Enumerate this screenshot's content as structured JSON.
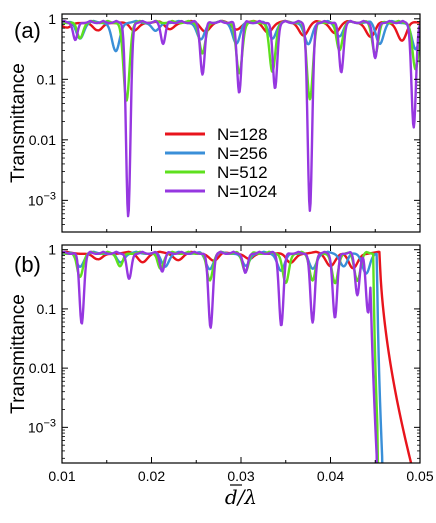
{
  "chart_data": [
    {
      "panel": "(a)",
      "type": "line",
      "ylabel": "Transmittance",
      "yscale": "log",
      "xlim": [
        0.01,
        0.05
      ],
      "ylim": [
        0.0003,
        1.2
      ],
      "yticks": [
        "1",
        "0.1",
        "0.01",
        "10^-3"
      ],
      "legend": {
        "position": "center",
        "entries": [
          "N=128",
          "N=256",
          "N=512",
          "N=1024"
        ]
      },
      "series": [
        {
          "name": "N=128",
          "color": "#e8141c",
          "dips": [
            [
              0.0105,
              0.78
            ],
            [
              0.014,
              0.7
            ],
            [
              0.018,
              0.72
            ],
            [
              0.022,
              0.78
            ],
            [
              0.026,
              0.72
            ],
            [
              0.0295,
              0.78
            ],
            [
              0.033,
              0.7
            ],
            [
              0.037,
              0.62
            ],
            [
              0.0405,
              0.68
            ],
            [
              0.0445,
              0.58
            ],
            [
              0.048,
              0.5
            ]
          ]
        },
        {
          "name": "N=256",
          "color": "#3a8fd8",
          "dips": [
            [
              0.012,
              0.55
            ],
            [
              0.016,
              0.32
            ],
            [
              0.0205,
              0.7
            ],
            [
              0.0255,
              0.5
            ],
            [
              0.0295,
              0.45
            ],
            [
              0.0335,
              0.55
            ],
            [
              0.0375,
              0.42
            ],
            [
              0.041,
              0.6
            ],
            [
              0.0455,
              0.45
            ],
            [
              0.0495,
              0.35
            ]
          ]
        },
        {
          "name": "N=512",
          "color": "#5ee01e",
          "dips": [
            [
              0.012,
              0.55
            ],
            [
              0.0172,
              0.05
            ],
            [
              0.0257,
              0.3
            ],
            [
              0.0298,
              0.14
            ],
            [
              0.0335,
              0.15
            ],
            [
              0.0377,
              0.055
            ],
            [
              0.041,
              0.35
            ],
            [
              0.045,
              0.3
            ],
            [
              0.0495,
              0.16
            ]
          ]
        },
        {
          "name": "N=1024",
          "color": "#9637e0",
          "dips": [
            [
              0.0115,
              0.5
            ],
            [
              0.0174,
              0.0006
            ],
            [
              0.0213,
              0.45
            ],
            [
              0.0257,
              0.14
            ],
            [
              0.0298,
              0.07
            ],
            [
              0.0338,
              0.08
            ],
            [
              0.0377,
              0.00075
            ],
            [
              0.0412,
              0.15
            ],
            [
              0.045,
              0.25
            ],
            [
              0.0493,
              0.018
            ]
          ]
        }
      ]
    },
    {
      "panel": "(b)",
      "type": "line",
      "ylabel": "Transmittance",
      "xlabel": "d̄/λ",
      "yscale": "log",
      "xlim": [
        0.01,
        0.05
      ],
      "ylim": [
        0.00025,
        1.2
      ],
      "xticks": [
        "0.01",
        "0.02",
        "0.03",
        "0.04",
        "0.05"
      ],
      "yticks": [
        "1",
        "0.1",
        "0.01",
        "10^-3"
      ],
      "series": [
        {
          "name": "N=128",
          "color": "#e8141c",
          "dips": [
            [
              0.014,
              0.75
            ],
            [
              0.019,
              0.72
            ],
            [
              0.023,
              0.78
            ],
            [
              0.027,
              0.75
            ],
            [
              0.031,
              0.78
            ],
            [
              0.0355,
              0.68
            ],
            [
              0.04,
              0.62
            ],
            [
              0.0425,
              0.55
            ]
          ],
          "cutoff": [
            0.0455,
            0.00025,
            0.049
          ]
        },
        {
          "name": "N=256",
          "color": "#3a8fd8",
          "dips": [
            [
              0.012,
              0.6
            ],
            [
              0.0165,
              0.7
            ],
            [
              0.0215,
              0.6
            ],
            [
              0.0265,
              0.55
            ],
            [
              0.0305,
              0.6
            ],
            [
              0.0345,
              0.5
            ],
            [
              0.038,
              0.55
            ],
            [
              0.0415,
              0.6
            ],
            [
              0.044,
              0.45
            ]
          ],
          "cutoff": [
            0.0452,
            0.00025,
            0.0458
          ]
        },
        {
          "name": "N=512",
          "color": "#5ee01e",
          "dips": [
            [
              0.012,
              0.4
            ],
            [
              0.0165,
              0.6
            ],
            [
              0.021,
              0.55
            ],
            [
              0.0265,
              0.35
            ],
            [
              0.0305,
              0.5
            ],
            [
              0.035,
              0.3
            ],
            [
              0.038,
              0.35
            ],
            [
              0.0405,
              0.3
            ],
            [
              0.043,
              0.35
            ]
          ],
          "cutoff": [
            0.0448,
            0.0006,
            0.0453
          ]
        },
        {
          "name": "N=1024",
          "color": "#9637e0",
          "dips": [
            [
              0.0122,
              0.065
            ],
            [
              0.0175,
              0.35
            ],
            [
              0.0212,
              0.5
            ],
            [
              0.0266,
              0.055
            ],
            [
              0.0305,
              0.45
            ],
            [
              0.0345,
              0.06
            ],
            [
              0.038,
              0.065
            ],
            [
              0.0405,
              0.08
            ],
            [
              0.043,
              0.2
            ],
            [
              0.0442,
              0.1
            ]
          ],
          "cutoff": [
            0.0445,
            0.00025,
            0.0452
          ]
        }
      ]
    }
  ],
  "labels": {
    "panel_a": "(a)",
    "panel_b": "(b)",
    "ylabel": "Transmittance",
    "xlabel": "d/λ"
  }
}
